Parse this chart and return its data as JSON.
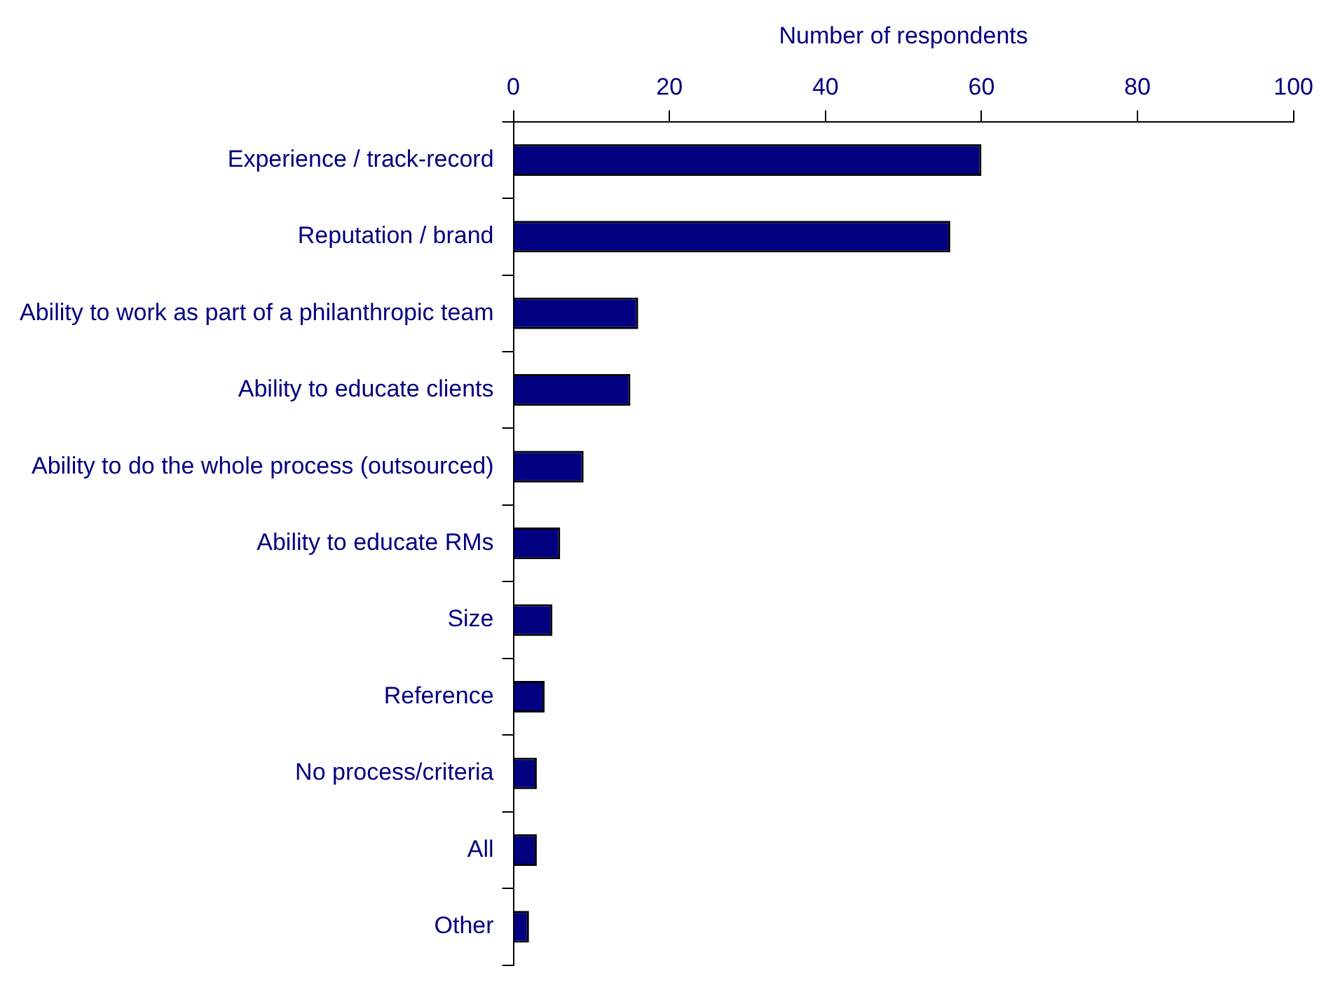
{
  "chart_data": {
    "type": "bar",
    "orientation": "horizontal",
    "xlabel": "Number of respondents",
    "categories": [
      "Experience / track-record",
      "Reputation / brand",
      "Ability to work as part of a philanthropic team",
      "Ability to educate clients",
      "Ability to do the whole process (outsourced)",
      "Ability to educate RMs",
      "Size",
      "Reference",
      "No process/criteria",
      "All",
      "Other"
    ],
    "values": [
      60,
      56,
      16,
      15,
      9,
      6,
      5,
      4,
      3,
      3,
      2
    ],
    "color": "#000080",
    "xlim": [
      0,
      100
    ],
    "xticks": [
      0,
      20,
      40,
      60,
      80,
      100
    ],
    "grid": false,
    "legend": false
  }
}
